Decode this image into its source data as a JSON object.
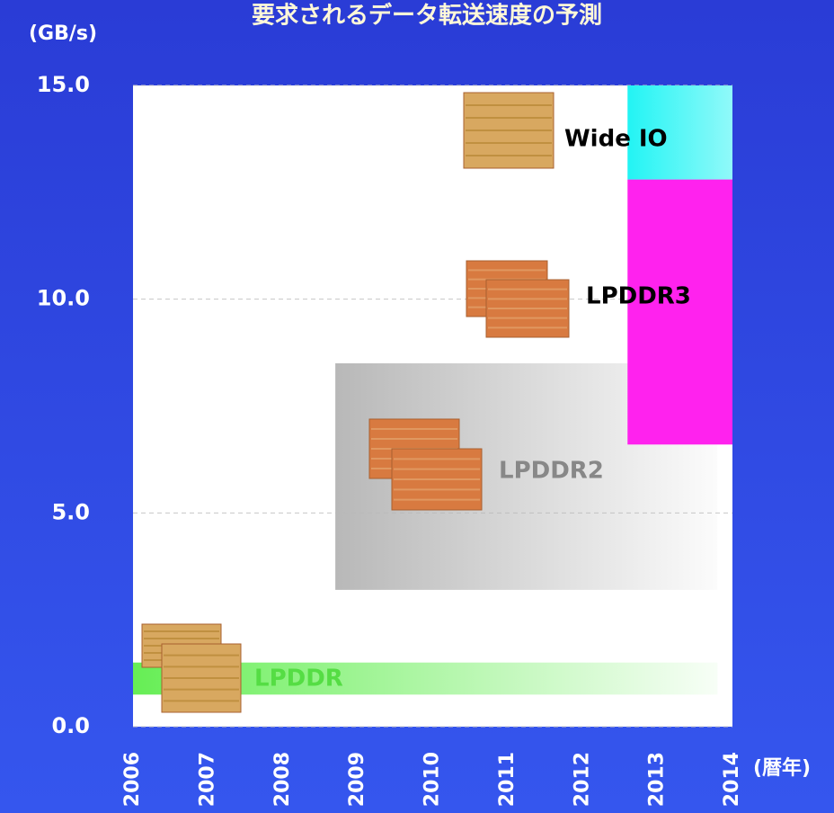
{
  "chart_data": {
    "type": "range",
    "title": "要求されるデータ転送速度の予測",
    "y_label": "(GB/s)",
    "x_label": "(暦年)",
    "xlim": [
      2006,
      2014
    ],
    "xticks": [
      2006,
      2007,
      2008,
      2009,
      2010,
      2011,
      2012,
      2013,
      2014
    ],
    "ylim": [
      0,
      15
    ],
    "yticks": [
      {
        "value": 0,
        "label": "0.0"
      },
      {
        "value": 5,
        "label": "5.0"
      },
      {
        "value": 10,
        "label": "10.0"
      },
      {
        "value": 15,
        "label": "15.0"
      }
    ],
    "grid": true,
    "series": [
      {
        "name": "LPDDR",
        "color": "#66ee55",
        "x": [
          2006,
          2013.8
        ],
        "values": [
          0.75,
          1.5
        ]
      },
      {
        "name": "LPDDR2",
        "color": "#b8b8b8",
        "x": [
          2008.7,
          2013.8
        ],
        "values": [
          3.2,
          8.5
        ]
      },
      {
        "name": "LPDDR3",
        "color": "#ff22ee",
        "x": [
          2012.6,
          2014
        ],
        "values": [
          6.6,
          12.8
        ]
      },
      {
        "name": "Wide IO",
        "color": "#22f4f4",
        "x": [
          2012.6,
          2014
        ],
        "values": [
          12.8,
          15
        ]
      }
    ]
  }
}
